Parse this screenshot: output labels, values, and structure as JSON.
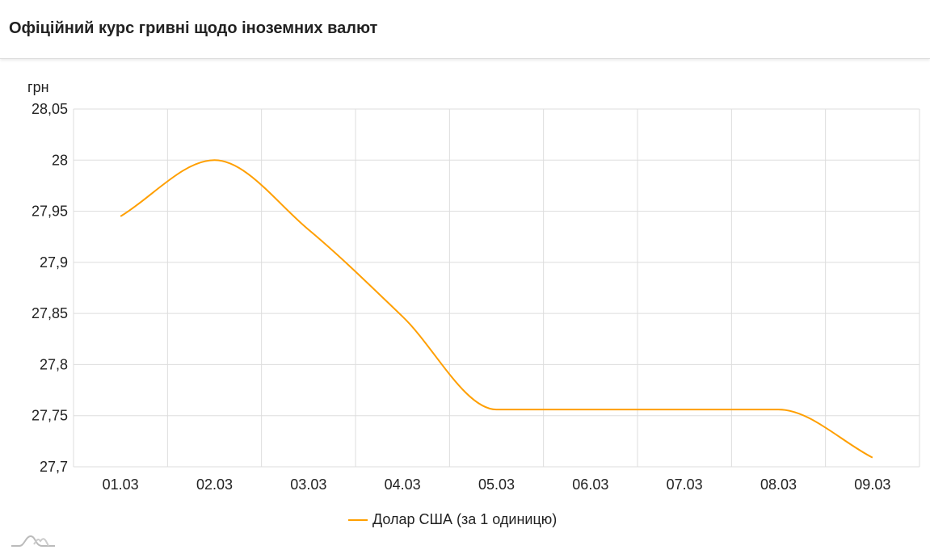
{
  "header": {
    "title": "Офіційний курс гривні щодо іноземних валют"
  },
  "chart_data": {
    "type": "line",
    "title": "",
    "ylabel": "грн",
    "xlabel": "",
    "categories": [
      "01.03",
      "02.03",
      "03.03",
      "04.03",
      "05.03",
      "06.03",
      "07.03",
      "08.03",
      "09.03"
    ],
    "series": [
      {
        "name": "Долар США (за 1 одиницю)",
        "color": "#ff9f00",
        "values": [
          27.945,
          28.0,
          27.932,
          27.847,
          27.756,
          27.756,
          27.756,
          27.756,
          27.709
        ]
      }
    ],
    "ylim": [
      27.7,
      28.05
    ],
    "yticks": [
      "27,7",
      "27,75",
      "27,8",
      "27,85",
      "27,9",
      "27,95",
      "28",
      "28,05"
    ],
    "grid": true,
    "smooth": true,
    "legend_position": "bottom"
  }
}
